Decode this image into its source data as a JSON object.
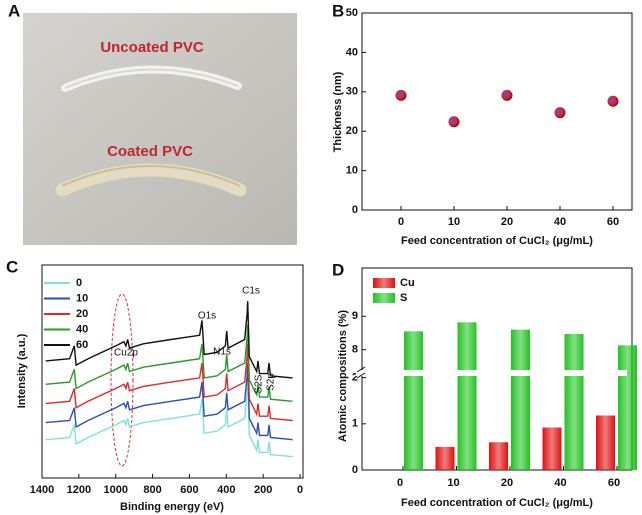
{
  "chart_data": [
    {
      "type": "image",
      "label": "A",
      "annotations": [
        "Uncoated PVC",
        "Coated PVC"
      ]
    },
    {
      "type": "scatter",
      "label": "B",
      "y_label": "Thickness (nm)",
      "x_label": "Feed concentration of CuCl₂ (μg/mL)",
      "categories": [
        "0",
        "10",
        "20",
        "40",
        "60"
      ],
      "values": [
        29.1,
        22.4,
        29.1,
        24.7,
        27.6
      ],
      "color": "#d8283c",
      "ylim": [
        0,
        50
      ],
      "yticks": [
        0,
        10,
        20,
        30,
        40,
        50
      ]
    },
    {
      "type": "line",
      "label": "C",
      "x_label": "Binding energy (eV)",
      "y_label": "Intensity (a.u.)",
      "x": [
        1380,
        1250,
        1225,
        1215,
        1150,
        1000,
        955,
        945,
        935,
        925,
        850,
        700,
        545,
        532,
        520,
        450,
        405,
        398,
        390,
        300,
        287,
        284,
        275,
        235,
        228,
        220,
        175,
        168,
        160,
        40
      ],
      "xlim": [
        1400,
        0
      ],
      "xticks": [
        1400,
        1200,
        1000,
        800,
        600,
        400,
        200,
        0
      ],
      "ylim": [
        0,
        100
      ],
      "legend": "upper left",
      "annotations": [
        "Cu2p",
        "O1s",
        "N1s",
        "C1s",
        "S2S",
        "S2p"
      ],
      "series": [
        {
          "name": "0",
          "color": "#7fe3dc",
          "values": [
            18,
            19,
            25,
            16,
            19,
            25,
            27,
            25,
            28,
            24,
            26,
            28,
            30,
            37,
            21,
            22,
            25,
            32,
            24,
            28,
            40,
            46,
            20,
            13,
            18,
            12,
            12,
            17,
            11,
            10
          ]
        },
        {
          "name": "10",
          "color": "#2a4fb8",
          "values": [
            26,
            27,
            33,
            24,
            27,
            33,
            35,
            33,
            36,
            32,
            34,
            36,
            38,
            45,
            29,
            30,
            33,
            40,
            32,
            36,
            48,
            54,
            28,
            21,
            26,
            20,
            20,
            25,
            19,
            18
          ]
        },
        {
          "name": "20",
          "color": "#e0282c",
          "values": [
            35,
            36,
            42,
            33,
            36,
            42,
            44,
            42,
            45,
            41,
            43,
            45,
            47,
            54,
            38,
            39,
            42,
            49,
            41,
            45,
            57,
            63,
            37,
            30,
            35,
            29,
            29,
            34,
            28,
            27
          ]
        },
        {
          "name": "40",
          "color": "#2a9a2a",
          "values": [
            44,
            45,
            51,
            42,
            45,
            51,
            53,
            51,
            54,
            50,
            52,
            54,
            56,
            63,
            47,
            48,
            51,
            58,
            50,
            54,
            66,
            72,
            46,
            39,
            44,
            38,
            38,
            43,
            37,
            36
          ]
        },
        {
          "name": "60",
          "color": "#111111",
          "values": [
            55,
            56,
            62,
            53,
            56,
            62,
            64,
            62,
            65,
            61,
            63,
            65,
            67,
            74,
            58,
            59,
            62,
            69,
            61,
            65,
            77,
            83,
            57,
            50,
            55,
            49,
            49,
            54,
            48,
            47
          ]
        }
      ]
    },
    {
      "type": "bar",
      "label": "D",
      "y_label": "Atomic compositions (%)",
      "x_label": "Feed concentration of CuCl₂ (μg/mL)",
      "categories": [
        "0",
        "10",
        "20",
        "40",
        "60"
      ],
      "legend": "upper left",
      "ylim": [
        0,
        10
      ],
      "ybreak": [
        2.1,
        7.3
      ],
      "yticks": [
        0,
        1,
        2,
        8,
        9
      ],
      "series": [
        {
          "name": "Cu",
          "color": "#e01010",
          "values": [
            0,
            0.5,
            0.6,
            0.92,
            1.18
          ]
        },
        {
          "name": "S",
          "color": "#22c322",
          "values": [
            8.55,
            8.82,
            8.6,
            8.47,
            8.13
          ]
        }
      ]
    }
  ]
}
